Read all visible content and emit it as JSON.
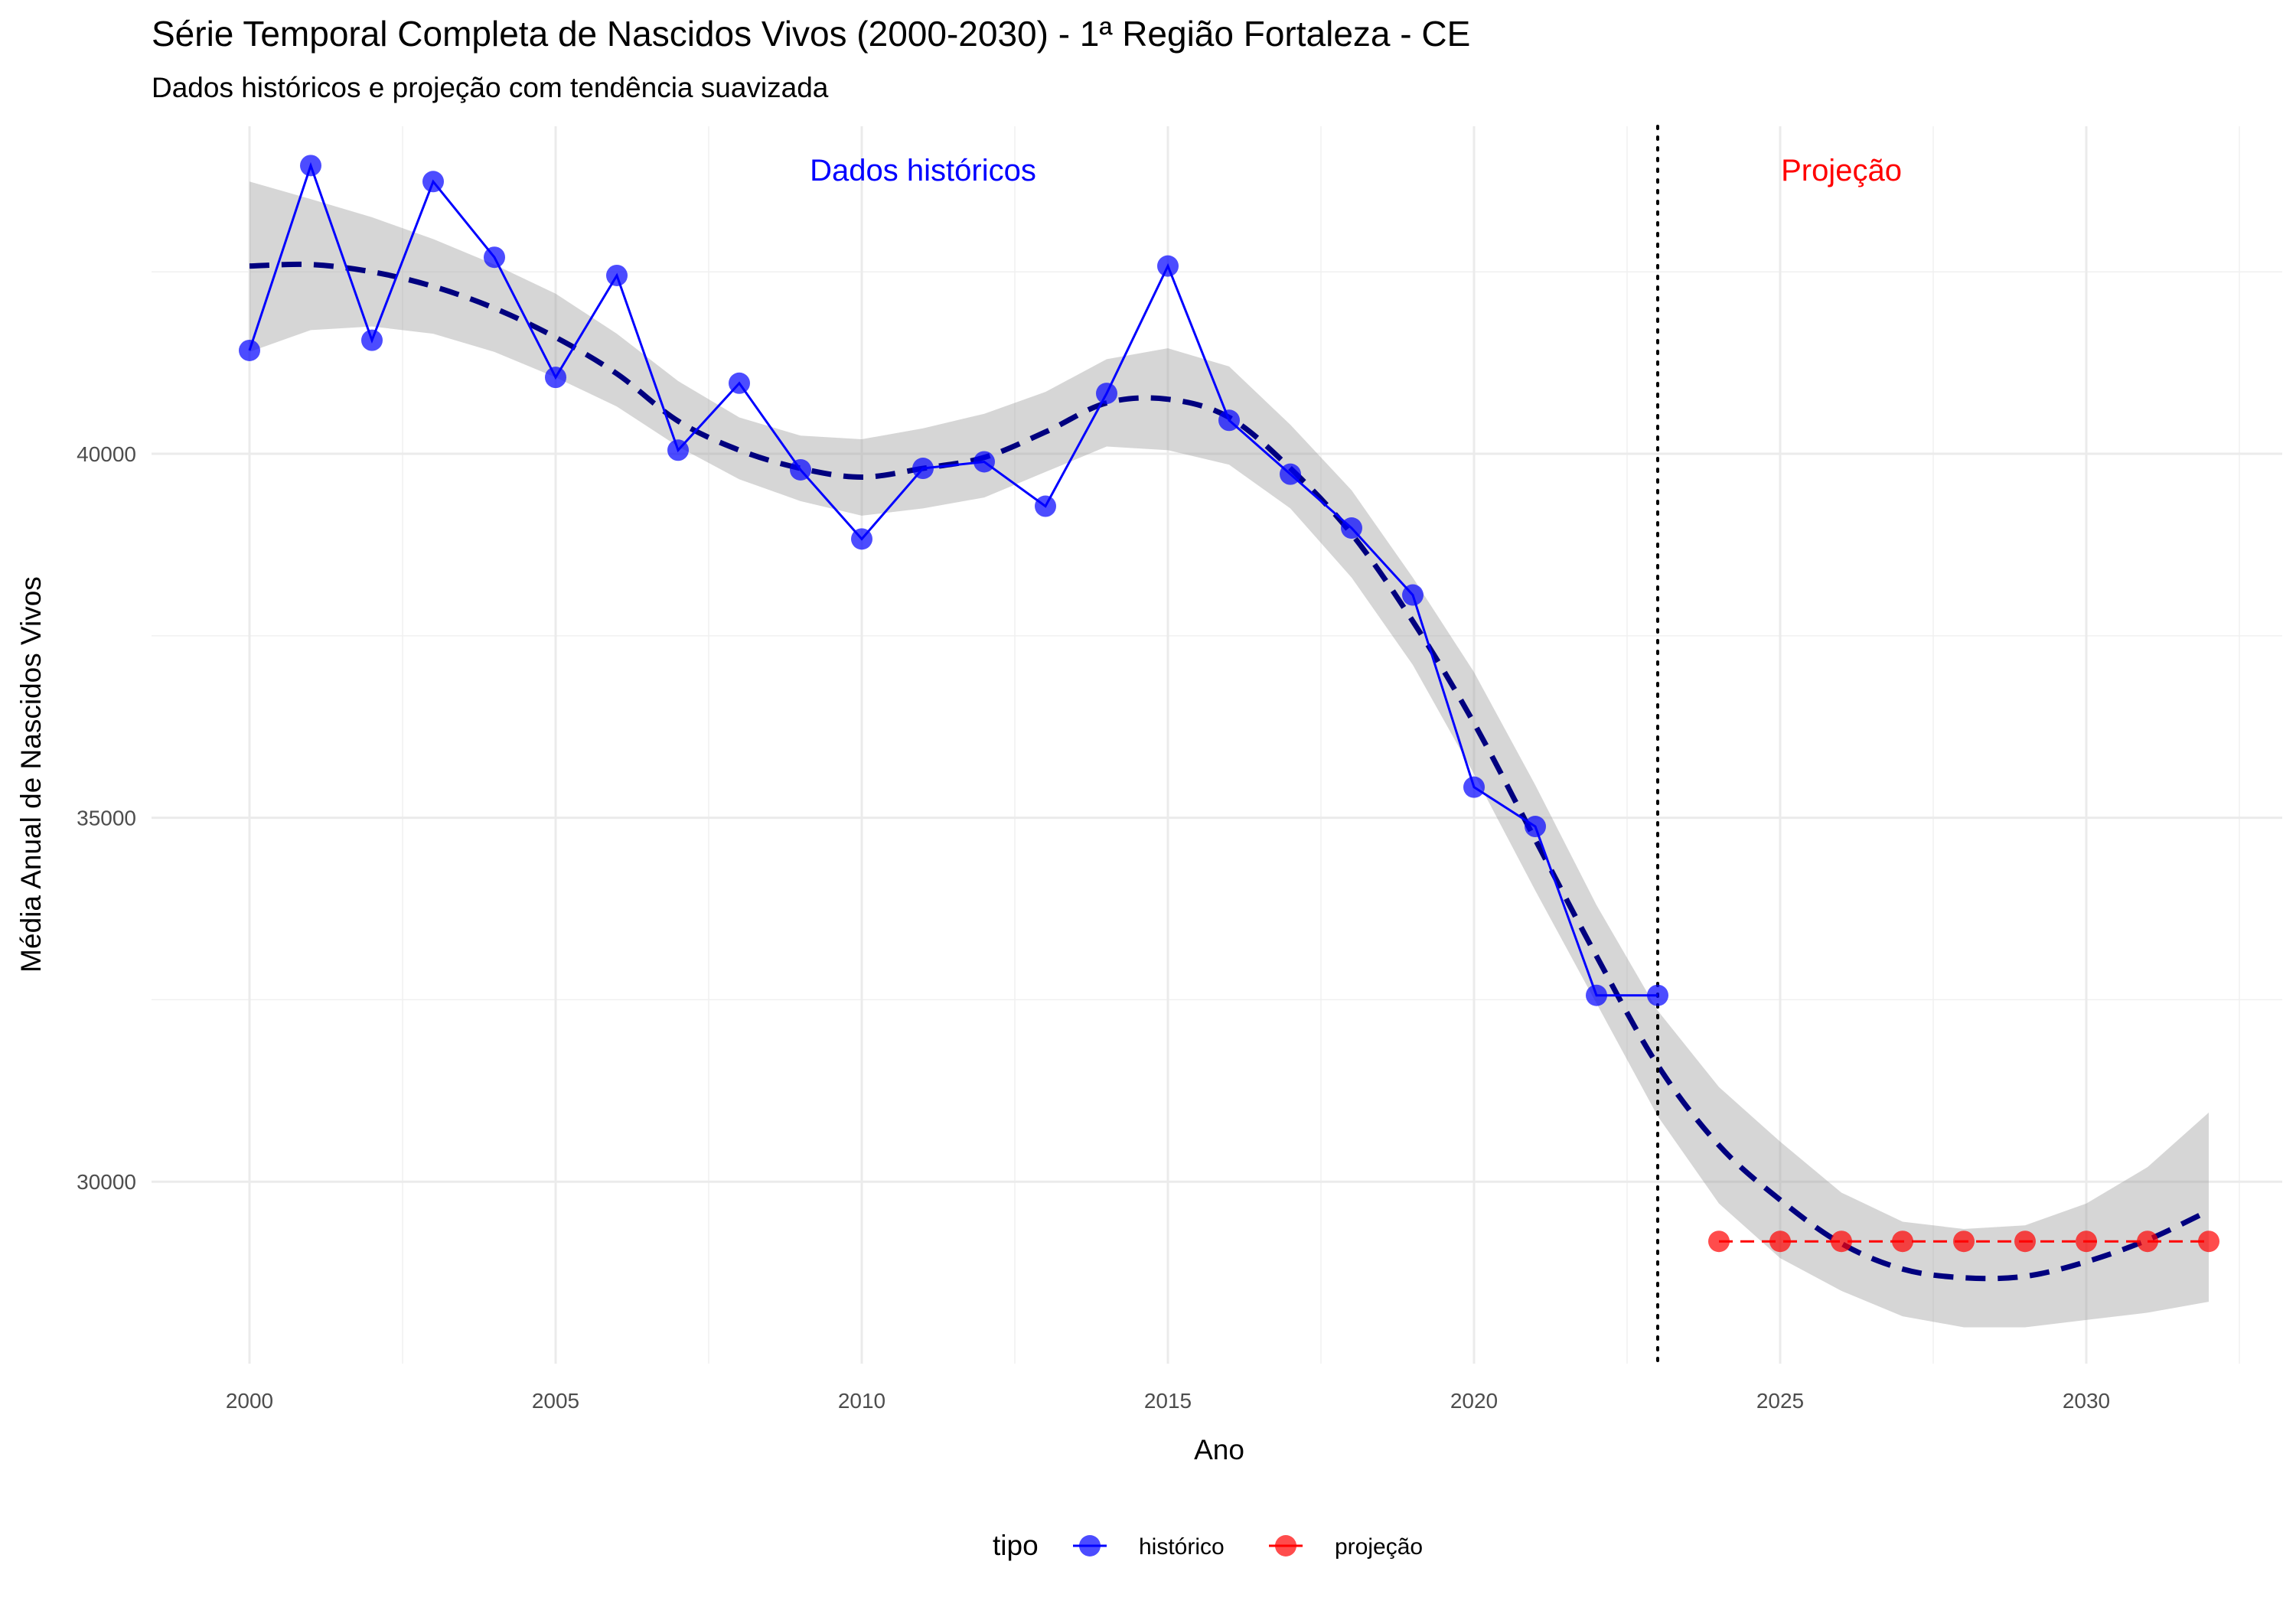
{
  "chart_data": {
    "type": "line",
    "title": "Série Temporal Completa de Nascidos Vivos (2000-2030) -  1ª Região Fortaleza - CE",
    "subtitle": "Dados históricos e projeção com tendência suavizada",
    "xlabel": "Ano",
    "ylabel": "Média Anual de Nascidos Vivos",
    "xlim": [
      1998.4,
      2033.2
    ],
    "ylim": [
      27500,
      44500
    ],
    "x_ticks": [
      2000,
      2005,
      2010,
      2015,
      2020,
      2025,
      2030
    ],
    "x_tick_labels": [
      "2000",
      "2005",
      "2010",
      "2015",
      "2020",
      "2025",
      "2030"
    ],
    "y_ticks": [
      30000,
      35000,
      40000
    ],
    "y_tick_labels": [
      "30000",
      "35000",
      "40000"
    ],
    "grid": true,
    "legend": {
      "title": "tipo",
      "position": "bottom",
      "entries": [
        {
          "label": "histórico",
          "color": "#0000ff"
        },
        {
          "label": "projeção",
          "color": "#ff0000"
        }
      ]
    },
    "vline": {
      "x": 2023,
      "style": "dotted"
    },
    "annotations": [
      {
        "text": "Dados históricos",
        "x": 2011,
        "y": 43900,
        "color": "#0000ff"
      },
      {
        "text": "Projeção",
        "x": 2026,
        "y": 43900,
        "color": "#ff0000"
      }
    ],
    "series": [
      {
        "name": "histórico",
        "color": "#0000ff",
        "x": [
          2000,
          2001,
          2002,
          2003,
          2004,
          2005,
          2006,
          2007,
          2008,
          2009,
          2010,
          2011,
          2012,
          2013,
          2014,
          2015,
          2016,
          2017,
          2018,
          2019,
          2020,
          2021,
          2022,
          2023
        ],
        "y": [
          41420,
          43960,
          41560,
          43740,
          42700,
          41050,
          42450,
          40050,
          40970,
          39780,
          38830,
          39800,
          39890,
          39280,
          40830,
          42580,
          40460,
          39720,
          38980,
          38060,
          35420,
          34880,
          32560,
          32560
        ]
      },
      {
        "name": "projeção",
        "color": "#ff0000",
        "x": [
          2024,
          2025,
          2026,
          2027,
          2028,
          2029,
          2030,
          2031,
          2032
        ],
        "y": [
          29180,
          29180,
          29180,
          29180,
          29180,
          29180,
          29180,
          29180,
          29180
        ]
      }
    ],
    "trend": {
      "color": "#00007f",
      "x": [
        2000,
        2001,
        2002,
        2003,
        2004,
        2005,
        2006,
        2007,
        2008,
        2009,
        2010,
        2011,
        2012,
        2013,
        2014,
        2015,
        2016,
        2017,
        2018,
        2019,
        2020,
        2021,
        2022,
        2023,
        2024,
        2025,
        2026,
        2027,
        2028,
        2029,
        2030,
        2031,
        2032
      ],
      "y": [
        42580,
        42600,
        42500,
        42300,
        42000,
        41600,
        41100,
        40450,
        40050,
        39800,
        39680,
        39800,
        39950,
        40300,
        40700,
        40750,
        40500,
        39800,
        38900,
        37700,
        36300,
        34700,
        33100,
        31600,
        30500,
        29750,
        29150,
        28800,
        28680,
        28700,
        28900,
        29200,
        29600
      ],
      "band_low": [
        41400,
        41700,
        41750,
        41650,
        41400,
        41050,
        40650,
        40100,
        39650,
        39350,
        39150,
        39250,
        39400,
        39750,
        40100,
        40050,
        39850,
        39250,
        38300,
        37100,
        35600,
        34000,
        32450,
        30900,
        29700,
        28950,
        28500,
        28150,
        28000,
        28000,
        28100,
        28200,
        28350
      ],
      "band_high": [
        43740,
        43500,
        43250,
        42950,
        42600,
        42200,
        41650,
        41000,
        40500,
        40250,
        40200,
        40350,
        40550,
        40850,
        41300,
        41450,
        41200,
        40400,
        39500,
        38300,
        37000,
        35450,
        33800,
        32350,
        31300,
        30550,
        29850,
        29450,
        29350,
        29400,
        29700,
        30200,
        30950
      ]
    }
  }
}
